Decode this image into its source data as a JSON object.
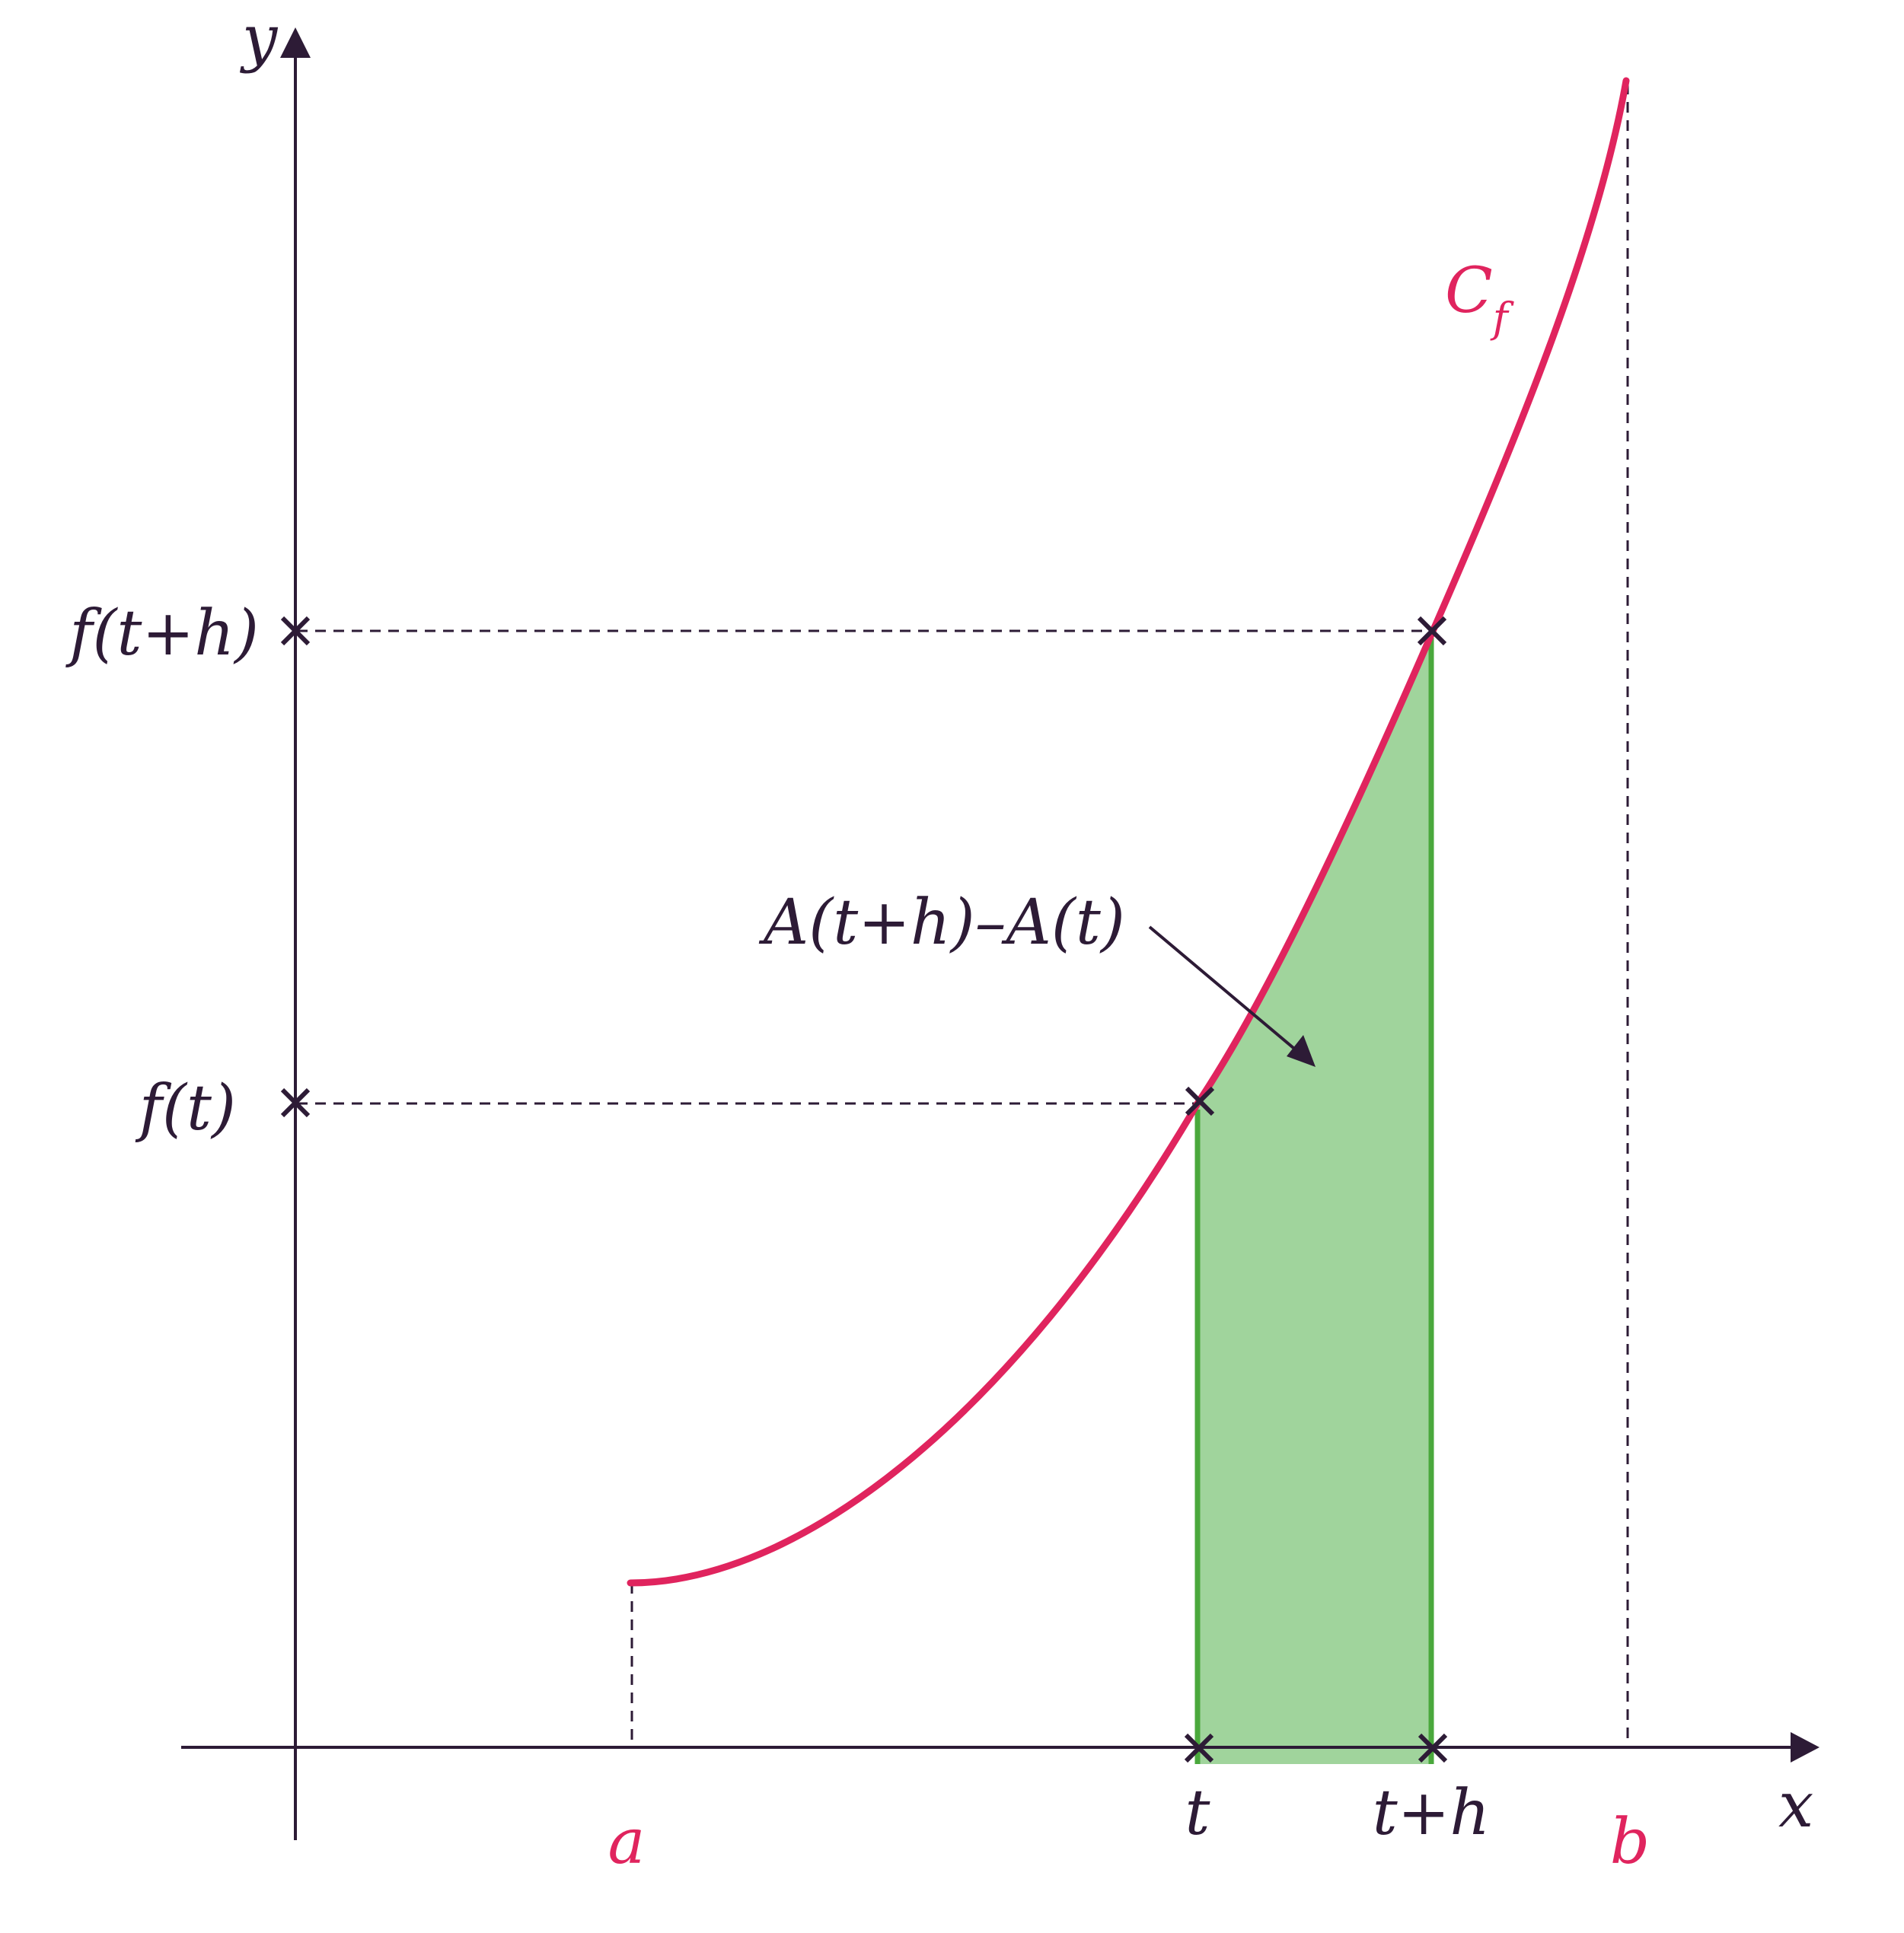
{
  "colors": {
    "axis": "#2d1b36",
    "curve": "#e0245e",
    "fill": "#a0d49c",
    "edge": "#4aa83c"
  },
  "labels": {
    "y_axis": "y",
    "x_axis": "x",
    "curve": "C",
    "curve_sub": "f",
    "a": "a",
    "b": "b",
    "t": "t",
    "t_plus_h": "t+h",
    "f_t": "f(t)",
    "f_t_plus_h": "f(t+h)",
    "area": "A(t+h)–A(t)"
  }
}
